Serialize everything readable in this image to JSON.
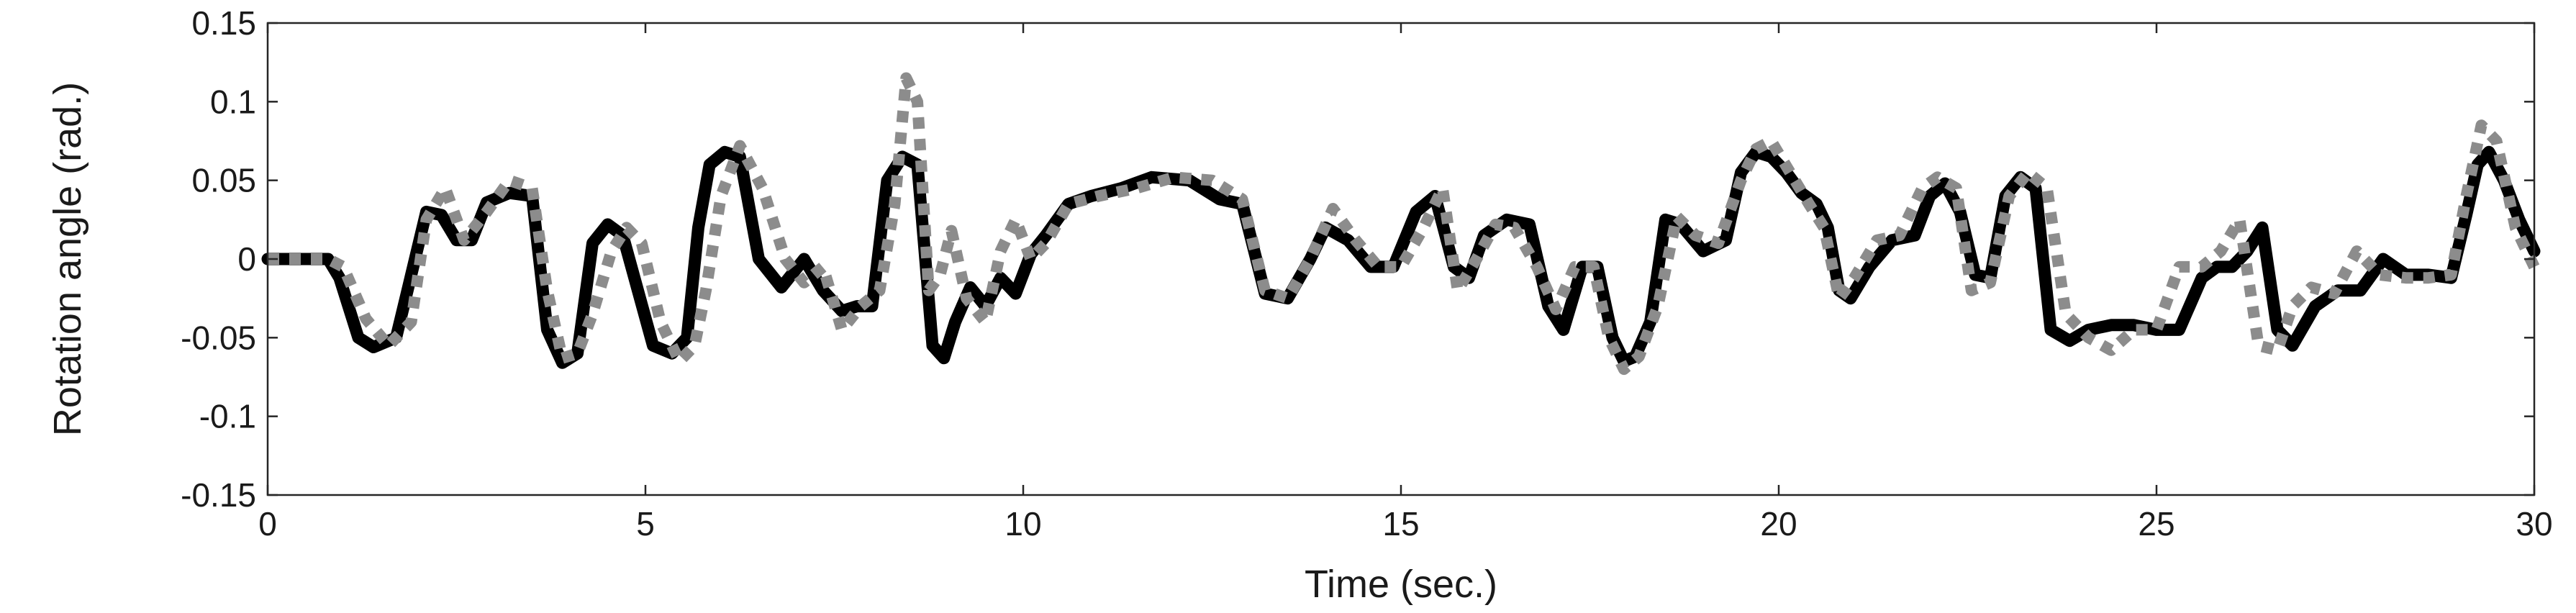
{
  "chart_data": {
    "type": "line",
    "title": "",
    "xlabel": "Time (sec.)",
    "ylabel": "Rotation angle (rad.)",
    "xlim": [
      0,
      30
    ],
    "ylim": [
      -0.15,
      0.15
    ],
    "xticks": [
      0,
      5,
      10,
      15,
      20,
      25,
      30
    ],
    "xtick_labels": [
      "0",
      "5",
      "10",
      "15",
      "20",
      "25",
      "30"
    ],
    "yticks": [
      -0.15,
      -0.1,
      -0.05,
      0,
      0.05,
      0.1,
      0.15
    ],
    "ytick_labels": [
      "-0.15",
      "-0.1",
      "-0.05",
      "0",
      "0.05",
      "0.1",
      "0.15"
    ],
    "grid": false,
    "legend": "none",
    "series": [
      {
        "style": "solid",
        "color": "#000000",
        "x": [
          0,
          0.8,
          0.95,
          1.2,
          1.4,
          1.7,
          1.85,
          2.1,
          2.3,
          2.5,
          2.7,
          2.9,
          3.2,
          3.5,
          3.7,
          3.9,
          4.1,
          4.3,
          4.5,
          4.7,
          4.9,
          5.1,
          5.35,
          5.55,
          5.7,
          5.85,
          6.05,
          6.25,
          6.5,
          6.8,
          7.1,
          7.35,
          7.6,
          7.8,
          8.0,
          8.2,
          8.4,
          8.6,
          8.8,
          8.95,
          9.1,
          9.3,
          9.5,
          9.7,
          9.9,
          10.1,
          10.3,
          10.6,
          10.9,
          11.3,
          11.7,
          12.2,
          12.6,
          12.9,
          13.2,
          13.5,
          13.8,
          14.0,
          14.3,
          14.6,
          14.9,
          15.2,
          15.45,
          15.7,
          15.9,
          16.1,
          16.4,
          16.7,
          16.95,
          17.15,
          17.4,
          17.6,
          17.8,
          17.95,
          18.1,
          18.3,
          18.5,
          18.7,
          19.0,
          19.3,
          19.5,
          19.7,
          19.9,
          20.1,
          20.3,
          20.5,
          20.65,
          20.8,
          20.95,
          21.2,
          21.5,
          21.8,
          22.0,
          22.2,
          22.4,
          22.6,
          22.8,
          23.0,
          23.2,
          23.4,
          23.6,
          23.85,
          24.1,
          24.4,
          24.7,
          25.0,
          25.3,
          25.6,
          25.8,
          26.0,
          26.2,
          26.4,
          26.6,
          26.8,
          27.1,
          27.4,
          27.7,
          28.0,
          28.3,
          28.6,
          28.9,
          29.1,
          29.25,
          29.4,
          29.6,
          29.8,
          30.0
        ],
        "y": [
          0,
          0,
          -0.012,
          -0.05,
          -0.056,
          -0.05,
          -0.02,
          0.03,
          0.028,
          0.012,
          0.012,
          0.036,
          0.042,
          0.04,
          -0.045,
          -0.066,
          -0.06,
          0.01,
          0.022,
          0.015,
          -0.02,
          -0.055,
          -0.06,
          -0.05,
          0.02,
          0.06,
          0.068,
          0.065,
          0.0,
          -0.018,
          0.0,
          -0.02,
          -0.033,
          -0.03,
          -0.03,
          0.05,
          0.065,
          0.06,
          -0.055,
          -0.063,
          -0.04,
          -0.018,
          -0.03,
          -0.012,
          -0.022,
          0.003,
          0.015,
          0.035,
          0.04,
          0.045,
          0.052,
          0.05,
          0.038,
          0.035,
          -0.022,
          -0.025,
          0.0,
          0.02,
          0.012,
          -0.005,
          -0.005,
          0.03,
          0.04,
          -0.005,
          -0.012,
          0.015,
          0.025,
          0.022,
          -0.03,
          -0.045,
          -0.005,
          -0.005,
          -0.05,
          -0.065,
          -0.062,
          -0.04,
          0.025,
          0.022,
          0.005,
          0.012,
          0.055,
          0.068,
          0.065,
          0.055,
          0.042,
          0.035,
          0.02,
          -0.02,
          -0.025,
          -0.005,
          0.012,
          0.015,
          0.04,
          0.048,
          0.03,
          -0.01,
          -0.012,
          0.04,
          0.052,
          0.045,
          -0.045,
          -0.052,
          -0.045,
          -0.042,
          -0.042,
          -0.045,
          -0.045,
          -0.012,
          -0.005,
          -0.005,
          0.005,
          0.02,
          -0.045,
          -0.055,
          -0.03,
          -0.02,
          -0.02,
          0.0,
          -0.01,
          -0.01,
          -0.012,
          0.028,
          0.06,
          0.068,
          0.05,
          0.025,
          0.005
        ]
      },
      {
        "style": "dotted",
        "color": "#8c8c8c",
        "x": [
          0,
          0.8,
          1.0,
          1.3,
          1.6,
          1.9,
          2.1,
          2.35,
          2.6,
          2.9,
          3.2,
          3.5,
          3.7,
          3.9,
          4.1,
          4.3,
          4.55,
          4.75,
          4.95,
          5.2,
          5.45,
          5.65,
          5.8,
          6.0,
          6.25,
          6.55,
          6.85,
          7.1,
          7.35,
          7.6,
          7.85,
          8.1,
          8.3,
          8.45,
          8.6,
          8.75,
          8.9,
          9.05,
          9.25,
          9.5,
          9.7,
          9.9,
          10.1,
          10.3,
          10.6,
          11.0,
          11.5,
          12.0,
          12.5,
          12.9,
          13.2,
          13.5,
          13.8,
          14.1,
          14.4,
          14.7,
          15.0,
          15.3,
          15.55,
          15.75,
          16.0,
          16.25,
          16.5,
          16.8,
          17.05,
          17.3,
          17.55,
          17.75,
          17.95,
          18.15,
          18.4,
          18.65,
          18.9,
          19.2,
          19.5,
          19.7,
          19.9,
          20.15,
          20.4,
          20.6,
          20.8,
          21.0,
          21.3,
          21.6,
          21.9,
          22.1,
          22.35,
          22.55,
          22.8,
          23.05,
          23.3,
          23.55,
          23.8,
          24.1,
          24.4,
          24.7,
          25.0,
          25.3,
          25.6,
          25.85,
          26.1,
          26.35,
          26.6,
          26.8,
          27.05,
          27.35,
          27.65,
          27.95,
          28.3,
          28.6,
          28.9,
          29.1,
          29.3,
          29.5,
          29.75,
          30.0
        ],
        "y": [
          0,
          0,
          -0.005,
          -0.038,
          -0.055,
          -0.04,
          0.025,
          0.045,
          0.012,
          0.03,
          0.05,
          0.045,
          -0.02,
          -0.063,
          -0.06,
          -0.035,
          0.005,
          0.02,
          0.01,
          -0.04,
          -0.065,
          -0.055,
          -0.02,
          0.04,
          0.072,
          0.045,
          0.0,
          -0.015,
          -0.005,
          -0.045,
          -0.03,
          -0.02,
          0.035,
          0.115,
          0.1,
          -0.02,
          -0.01,
          0.018,
          -0.025,
          -0.04,
          0.005,
          0.025,
          0.0,
          0.01,
          0.035,
          0.04,
          0.045,
          0.052,
          0.05,
          0.038,
          -0.02,
          -0.025,
          0.0,
          0.032,
          0.012,
          -0.005,
          -0.005,
          0.02,
          0.045,
          -0.02,
          0.0,
          0.022,
          0.02,
          -0.005,
          -0.032,
          -0.005,
          -0.005,
          -0.05,
          -0.07,
          -0.062,
          -0.03,
          0.027,
          0.015,
          0.01,
          0.05,
          0.07,
          0.075,
          0.055,
          0.035,
          0.02,
          -0.025,
          -0.012,
          0.012,
          0.015,
          0.045,
          0.052,
          0.045,
          -0.02,
          -0.015,
          0.04,
          0.055,
          0.045,
          -0.035,
          -0.05,
          -0.058,
          -0.045,
          -0.045,
          -0.005,
          -0.005,
          0.005,
          0.025,
          -0.055,
          -0.058,
          -0.03,
          -0.018,
          -0.022,
          0.005,
          -0.01,
          -0.012,
          -0.012,
          -0.01,
          0.04,
          0.085,
          0.075,
          0.02,
          -0.005
        ]
      }
    ]
  }
}
